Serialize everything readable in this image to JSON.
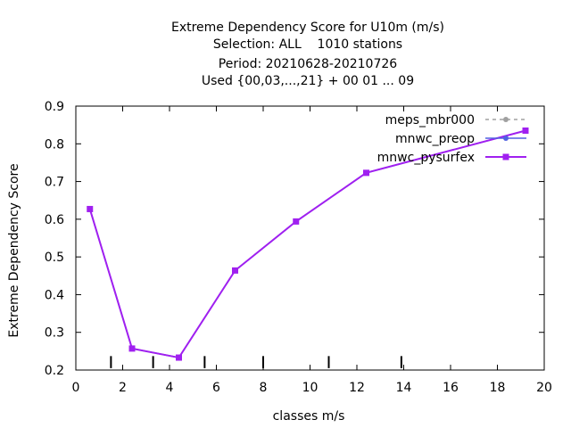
{
  "chart_data": {
    "type": "line",
    "title_lines": [
      "Extreme Dependency Score  for U10m (m/s)",
      "Selection: ALL    1010 stations",
      "Period: 20210628-20210726",
      "Used {00,03,...,21} + 00 01 ... 09"
    ],
    "xlabel": "classes m/s",
    "ylabel": "Extreme Dependency Score",
    "xlim": [
      0,
      20
    ],
    "ylim": [
      0.2,
      0.9
    ],
    "xticks": [
      0,
      2,
      4,
      6,
      8,
      10,
      12,
      14,
      16,
      18,
      20
    ],
    "yticks": [
      0.2,
      0.3,
      0.4,
      0.5,
      0.6,
      0.7,
      0.8,
      0.9
    ],
    "xtick_labels": [
      "0",
      "2",
      "4",
      "6",
      "8",
      "10",
      "12",
      "14",
      "16",
      "18",
      "20"
    ],
    "ytick_labels": [
      "0.2",
      "0.3",
      "0.4",
      "0.5",
      "0.6",
      "0.7",
      "0.8",
      "0.9"
    ],
    "class_limits": [
      1.5,
      3.3,
      5.5,
      8.0,
      10.8,
      13.9
    ],
    "grid": false,
    "legend_position": "top-right",
    "series": [
      {
        "name": "meps_mbr000",
        "color": "#a0a0a0",
        "dashed": true,
        "marker": "circle",
        "x": [
          0.6,
          2.4,
          4.4,
          6.8,
          9.4,
          12.4,
          19.2
        ],
        "y": [
          0.627,
          0.257,
          0.233,
          0.464,
          0.594,
          0.723,
          0.835
        ]
      },
      {
        "name": "mnwc_preop",
        "color": "#5060e0",
        "dashed": false,
        "marker": "circle",
        "x": [
          0.6,
          2.4,
          4.4,
          6.8,
          9.4,
          12.4,
          19.2
        ],
        "y": [
          0.627,
          0.257,
          0.233,
          0.464,
          0.594,
          0.723,
          0.835
        ]
      },
      {
        "name": "mnwc_pysurfex",
        "color": "#a020f0",
        "dashed": false,
        "marker": "square",
        "x": [
          0.6,
          2.4,
          4.4,
          6.8,
          9.4,
          12.4,
          19.2
        ],
        "y": [
          0.627,
          0.257,
          0.233,
          0.464,
          0.594,
          0.723,
          0.835
        ]
      }
    ]
  }
}
